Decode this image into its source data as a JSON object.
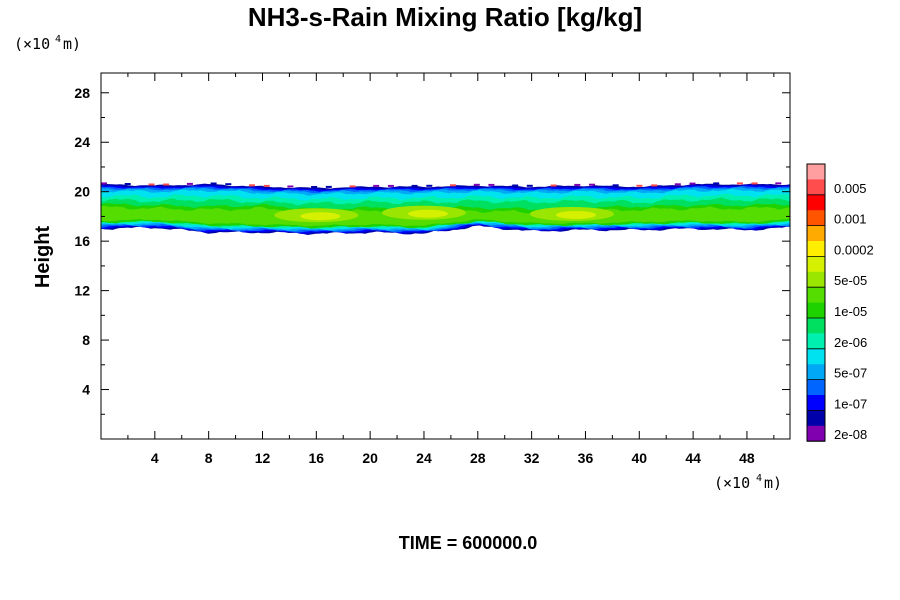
{
  "chart_data": {
    "type": "heatmap",
    "title": "NH3-s-Rain Mixing Ratio [kg/kg]",
    "ylabel": "Height",
    "xlabel": "",
    "x_unit": {
      "base": "(×10",
      "exp": "4",
      "suffix": " m)"
    },
    "y_unit": {
      "base": "(×10",
      "exp": "4",
      "suffix": " m)"
    },
    "xlim": [
      0,
      51.2
    ],
    "ylim": [
      0,
      29.6
    ],
    "x_ticks": [
      "4",
      "8",
      "12",
      "16",
      "20",
      "24",
      "28",
      "32",
      "36",
      "40",
      "44",
      "48"
    ],
    "y_ticks": [
      "4",
      "8",
      "12",
      "16",
      "20",
      "24",
      "28"
    ],
    "grid": false,
    "colorbar": {
      "labels": [
        "0.005",
        "0.001",
        "0.0002",
        "5e-05",
        "1e-05",
        "2e-06",
        "5e-07",
        "1e-07",
        "2e-08"
      ],
      "colors": [
        "#ff9f9f",
        "#ff4d4d",
        "#ff0000",
        "#ff5500",
        "#ffaa00",
        "#ffee00",
        "#d5f000",
        "#9be600",
        "#55dc00",
        "#1ed200",
        "#00e060",
        "#00f0b0",
        "#00e2f0",
        "#00a8f5",
        "#0064ff",
        "#0000ff",
        "#0000aa",
        "#8000b0"
      ]
    },
    "layer": {
      "x": [
        0,
        4,
        8,
        12,
        16,
        20,
        24,
        28,
        32,
        36,
        40,
        44,
        48,
        51.2
      ],
      "top_km": [
        20.6,
        20.5,
        20.6,
        20.4,
        20.3,
        20.4,
        20.4,
        20.5,
        20.4,
        20.5,
        20.4,
        20.6,
        20.6,
        20.6
      ],
      "bottom_km": [
        17.0,
        17.1,
        16.7,
        16.7,
        16.6,
        16.7,
        16.6,
        17.2,
        16.8,
        16.9,
        16.9,
        17.0,
        16.9,
        17.1
      ],
      "core_top_km": [
        19.0,
        18.9,
        18.8,
        18.9,
        18.6,
        18.7,
        18.8,
        18.7,
        18.6,
        18.7,
        18.8,
        18.9,
        18.9,
        19.0
      ],
      "core_bottom_km": [
        17.5,
        17.6,
        17.3,
        17.2,
        17.1,
        17.2,
        17.1,
        17.6,
        17.3,
        17.3,
        17.4,
        17.5,
        17.4,
        17.6
      ],
      "peak_regions": [
        [
          16,
          18.1
        ],
        [
          24,
          18.3
        ],
        [
          35,
          18.2
        ]
      ]
    },
    "annotations": {
      "time_label": "TIME = 600000.0"
    }
  }
}
